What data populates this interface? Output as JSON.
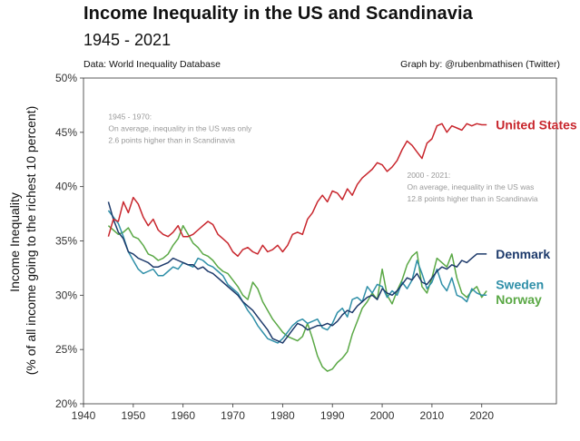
{
  "header": {
    "title": "Income Inequality in the US and Scandinavia",
    "subtitle": "1945 - 2021",
    "source": "Data: World Inequality Database",
    "credit": "Graph by: @rubenbmathisen (Twitter)"
  },
  "colors": {
    "us": "#c8262d",
    "denmark": "#1d3a6b",
    "sweden": "#2f8fa8",
    "norway": "#5aa845",
    "annotation": "#999999",
    "axis": "#333333"
  },
  "chart_data": {
    "type": "line",
    "title": "Income Inequality in the US and Scandinavia",
    "subtitle": "1945 - 2021",
    "xlabel": "",
    "ylabel": "Income Inequality\n(% of all income going to the richest 10 percent)",
    "ylabel_lines": [
      "Income Inequality",
      "(% of all income going to the richest 10 percent)"
    ],
    "xlim": [
      1940,
      2035
    ],
    "ylim": [
      20,
      50
    ],
    "x_ticks": [
      1940,
      1950,
      1960,
      1970,
      1980,
      1990,
      2000,
      2010,
      2020
    ],
    "y_ticks": [
      20,
      25,
      30,
      35,
      40,
      45,
      50
    ],
    "y_tick_labels": [
      "20%",
      "25%",
      "30%",
      "35%",
      "40%",
      "45%",
      "50%"
    ],
    "grid": false,
    "annotations": [
      {
        "year": 1945,
        "value": 46.2,
        "lines": [
          "1945 - 1970:",
          "On average, inequality in the US was only",
          "2.6 points higher than in Scandinavia"
        ]
      },
      {
        "year": 2005,
        "value": 40.8,
        "lines": [
          "2000 - 2021:",
          "On average, inequality in the US was",
          "12.8 points higher than in Scandinavia"
        ]
      }
    ],
    "series": [
      {
        "name": "United States",
        "key": "us",
        "x": [
          1945,
          1946,
          1947,
          1948,
          1949,
          1950,
          1951,
          1952,
          1953,
          1954,
          1955,
          1956,
          1957,
          1958,
          1959,
          1960,
          1961,
          1962,
          1963,
          1964,
          1965,
          1966,
          1967,
          1968,
          1969,
          1970,
          1971,
          1972,
          1973,
          1974,
          1975,
          1976,
          1977,
          1978,
          1979,
          1980,
          1981,
          1982,
          1983,
          1984,
          1985,
          1986,
          1987,
          1988,
          1989,
          1990,
          1991,
          1992,
          1993,
          1994,
          1995,
          1996,
          1997,
          1998,
          1999,
          2000,
          2001,
          2002,
          2003,
          2004,
          2005,
          2006,
          2007,
          2008,
          2009,
          2010,
          2011,
          2012,
          2013,
          2014,
          2015,
          2016,
          2017,
          2018,
          2019,
          2020,
          2021
        ],
        "values": [
          35.4,
          37.0,
          36.8,
          38.6,
          37.6,
          39.0,
          38.4,
          37.2,
          36.4,
          37.0,
          36.0,
          35.6,
          35.4,
          35.8,
          36.4,
          35.4,
          35.4,
          35.6,
          36.0,
          36.4,
          36.8,
          36.5,
          35.6,
          35.2,
          34.8,
          34.0,
          33.6,
          34.2,
          34.4,
          34.0,
          33.8,
          34.6,
          34.0,
          34.2,
          34.6,
          34.0,
          34.6,
          35.6,
          35.8,
          35.6,
          37.0,
          37.6,
          38.6,
          39.2,
          38.6,
          39.6,
          39.4,
          38.8,
          39.8,
          39.2,
          40.2,
          40.8,
          41.2,
          41.6,
          42.2,
          42.0,
          41.4,
          41.8,
          42.4,
          43.4,
          44.2,
          43.8,
          43.2,
          42.6,
          44.0,
          44.4,
          45.6,
          45.8,
          45.0,
          45.6,
          45.4,
          45.2,
          45.8,
          45.6,
          45.8,
          45.7,
          45.7
        ]
      },
      {
        "name": "Denmark",
        "key": "denmark",
        "x": [
          1945,
          1946,
          1947,
          1948,
          1949,
          1950,
          1951,
          1952,
          1953,
          1954,
          1955,
          1956,
          1957,
          1958,
          1959,
          1960,
          1961,
          1962,
          1963,
          1964,
          1965,
          1966,
          1967,
          1968,
          1969,
          1970,
          1971,
          1972,
          1973,
          1974,
          1975,
          1976,
          1977,
          1978,
          1979,
          1980,
          1981,
          1982,
          1983,
          1984,
          1985,
          1986,
          1987,
          1988,
          1989,
          1990,
          1991,
          1992,
          1993,
          1994,
          1995,
          1996,
          1997,
          1998,
          1999,
          2000,
          2001,
          2002,
          2003,
          2004,
          2005,
          2006,
          2007,
          2008,
          2009,
          2010,
          2011,
          2012,
          2013,
          2014,
          2015,
          2016,
          2017,
          2018,
          2019,
          2020,
          2021
        ],
        "values": [
          38.6,
          37.0,
          35.8,
          35.2,
          34.0,
          33.8,
          33.4,
          33.2,
          33.0,
          32.6,
          32.6,
          32.8,
          33.0,
          33.4,
          33.2,
          33.0,
          32.8,
          32.8,
          32.4,
          32.6,
          32.2,
          32.0,
          31.6,
          31.2,
          30.8,
          30.4,
          30.0,
          29.4,
          29.0,
          28.6,
          28.0,
          27.4,
          26.8,
          26.0,
          25.8,
          25.6,
          26.2,
          26.8,
          27.4,
          27.2,
          26.8,
          27.0,
          27.2,
          27.2,
          27.4,
          27.2,
          27.6,
          28.2,
          28.6,
          28.4,
          29.0,
          29.4,
          29.8,
          30.0,
          29.6,
          30.6,
          30.2,
          30.0,
          30.4,
          31.0,
          31.6,
          31.4,
          32.0,
          31.2,
          31.0,
          31.6,
          32.2,
          32.6,
          32.4,
          32.8,
          32.6,
          33.2,
          33.0,
          33.4,
          33.8,
          33.8,
          33.8
        ]
      },
      {
        "name": "Sweden",
        "key": "sweden",
        "x": [
          1945,
          1946,
          1947,
          1948,
          1949,
          1950,
          1951,
          1952,
          1953,
          1954,
          1955,
          1956,
          1957,
          1958,
          1959,
          1960,
          1961,
          1962,
          1963,
          1964,
          1965,
          1966,
          1967,
          1968,
          1969,
          1970,
          1971,
          1972,
          1973,
          1974,
          1975,
          1976,
          1977,
          1978,
          1979,
          1980,
          1981,
          1982,
          1983,
          1984,
          1985,
          1986,
          1987,
          1988,
          1989,
          1990,
          1991,
          1992,
          1993,
          1994,
          1995,
          1996,
          1997,
          1998,
          1999,
          2000,
          2001,
          2002,
          2003,
          2004,
          2005,
          2006,
          2007,
          2008,
          2009,
          2010,
          2011,
          2012,
          2013,
          2014,
          2015,
          2016,
          2017,
          2018,
          2019,
          2020,
          2021
        ],
        "values": [
          37.8,
          37.2,
          36.6,
          35.4,
          34.0,
          33.2,
          32.4,
          32.0,
          32.2,
          32.4,
          31.8,
          31.8,
          32.2,
          32.6,
          32.4,
          33.0,
          32.8,
          32.6,
          33.4,
          33.2,
          32.8,
          32.6,
          32.2,
          31.8,
          31.0,
          30.6,
          30.2,
          29.4,
          28.6,
          28.0,
          27.2,
          26.6,
          26.0,
          25.8,
          25.6,
          26.0,
          26.6,
          27.2,
          27.6,
          27.8,
          27.4,
          27.6,
          27.8,
          27.0,
          26.8,
          27.4,
          28.4,
          28.8,
          28.0,
          29.6,
          29.8,
          29.4,
          30.8,
          30.2,
          31.0,
          30.8,
          29.8,
          30.4,
          30.0,
          31.2,
          30.6,
          31.4,
          33.2,
          32.0,
          30.6,
          31.2,
          32.4,
          31.0,
          30.4,
          31.6,
          30.0,
          29.8,
          29.4,
          30.6,
          30.2,
          30.0,
          30.0
        ]
      },
      {
        "name": "Norway",
        "key": "norway",
        "x": [
          1945,
          1946,
          1947,
          1948,
          1949,
          1950,
          1951,
          1952,
          1953,
          1954,
          1955,
          1956,
          1957,
          1958,
          1959,
          1960,
          1961,
          1962,
          1963,
          1964,
          1965,
          1966,
          1967,
          1968,
          1969,
          1970,
          1971,
          1972,
          1973,
          1974,
          1975,
          1976,
          1977,
          1978,
          1979,
          1980,
          1981,
          1982,
          1983,
          1984,
          1985,
          1986,
          1987,
          1988,
          1989,
          1990,
          1991,
          1992,
          1993,
          1994,
          1995,
          1996,
          1997,
          1998,
          1999,
          2000,
          2001,
          2002,
          2003,
          2004,
          2005,
          2006,
          2007,
          2008,
          2009,
          2010,
          2011,
          2012,
          2013,
          2014,
          2015,
          2016,
          2017,
          2018,
          2019,
          2020,
          2021
        ],
        "values": [
          36.4,
          36.0,
          35.6,
          35.8,
          36.2,
          35.4,
          35.2,
          34.6,
          33.8,
          33.6,
          33.2,
          33.4,
          33.8,
          34.6,
          35.2,
          36.4,
          35.6,
          34.8,
          34.4,
          33.8,
          33.6,
          33.2,
          32.6,
          32.2,
          32.0,
          31.4,
          30.8,
          30.0,
          29.6,
          31.2,
          30.6,
          29.4,
          28.6,
          27.8,
          27.2,
          26.6,
          26.2,
          26.0,
          25.8,
          26.2,
          27.4,
          26.0,
          24.4,
          23.4,
          23.0,
          23.2,
          23.8,
          24.2,
          24.8,
          26.4,
          27.6,
          28.8,
          29.4,
          30.2,
          29.6,
          32.4,
          30.0,
          29.2,
          30.4,
          31.4,
          32.8,
          33.6,
          34.0,
          30.8,
          30.2,
          31.6,
          33.4,
          33.0,
          32.6,
          33.8,
          31.6,
          30.2,
          29.8,
          30.4,
          30.8,
          29.8,
          30.4
        ]
      }
    ]
  }
}
